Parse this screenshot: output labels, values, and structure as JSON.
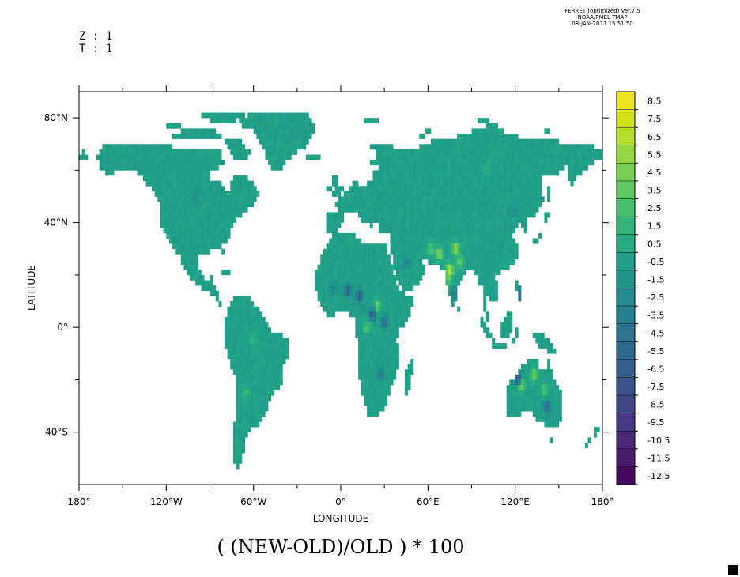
{
  "header": {
    "program_lines": [
      "FERRET (optimized) Ver.7.5",
      "NOAA/PMEL TMAP",
      "08-JAN-2021 15 51 50"
    ],
    "z_label": "Z : 1",
    "t_label": "T : 1"
  },
  "chart_data": {
    "type": "heatmap",
    "title": "( (NEW-OLD)/OLD ) * 100",
    "xlabel": "LONGITUDE",
    "ylabel": "LATITUDE",
    "xlim": [
      -180,
      180
    ],
    "ylim": [
      -60,
      90
    ],
    "x_ticks": [
      {
        "value": -180,
        "label": "180°"
      },
      {
        "value": -120,
        "label": "120°W"
      },
      {
        "value": -60,
        "label": "60°W"
      },
      {
        "value": 0,
        "label": "0°"
      },
      {
        "value": 60,
        "label": "60°E"
      },
      {
        "value": 120,
        "label": "120°E"
      },
      {
        "value": 180,
        "label": "180°"
      }
    ],
    "x_minor_ticks": [
      -150,
      -90,
      -30,
      30,
      90,
      150
    ],
    "y_ticks": [
      {
        "value": 80,
        "label": "80°N"
      },
      {
        "value": 40,
        "label": "40°N"
      },
      {
        "value": 0,
        "label": "0°"
      },
      {
        "value": -40,
        "label": "40°S"
      }
    ],
    "y_minor_ticks": [
      60,
      20,
      -20
    ],
    "colorbar": {
      "levels": [
        -12.5,
        -11.5,
        -10.5,
        -9.5,
        -8.5,
        -7.5,
        -6.5,
        -5.5,
        -4.5,
        -3.5,
        -2.5,
        -1.5,
        -0.5,
        0.5,
        1.5,
        2.5,
        3.5,
        4.5,
        5.5,
        6.5,
        7.5,
        8.5
      ],
      "labels": [
        "8.5",
        "7.5",
        "6.5",
        "5.5",
        "4.5",
        "3.5",
        "2.5",
        "1.5",
        "0.5",
        "-0.5",
        "-1.5",
        "-2.5",
        "-3.5",
        "-4.5",
        "-5.5",
        "-6.5",
        "-7.5",
        "-8.5",
        "-9.5",
        "-10.5",
        "-11.5",
        "-12.5"
      ],
      "colormap": "viridis",
      "min": -12.5,
      "max": 9.5
    },
    "field_note": "Land-only field; values mostly near 0 (teal), with positive (yellow) patches over northern India and NW Australia and negative (purple/blue) patches over central Africa, Philippines and Australia.",
    "base_value": 0,
    "anomalies": [
      {
        "lon": 75,
        "lat": 22,
        "value": 7.5
      },
      {
        "lon": 79,
        "lat": 30,
        "value": 6.5
      },
      {
        "lon": 68,
        "lat": 28,
        "value": 5.5
      },
      {
        "lon": 82,
        "lat": 25,
        "value": 4.5
      },
      {
        "lon": 74,
        "lat": 18,
        "value": 3.5
      },
      {
        "lon": 62,
        "lat": 30,
        "value": 3.5
      },
      {
        "lon": 78,
        "lat": 13,
        "value": -3.5
      },
      {
        "lon": 125,
        "lat": 12,
        "value": -9.5
      },
      {
        "lon": 122,
        "lat": -20,
        "value": -8.5
      },
      {
        "lon": 124,
        "lat": -22,
        "value": 6.5
      },
      {
        "lon": 133,
        "lat": -18,
        "value": 5.5
      },
      {
        "lon": 142,
        "lat": -30,
        "value": -5.5
      },
      {
        "lon": 140,
        "lat": -24,
        "value": 3.5
      },
      {
        "lon": 5,
        "lat": 14,
        "value": -5.5
      },
      {
        "lon": 13,
        "lat": 12,
        "value": -6.5
      },
      {
        "lon": 22,
        "lat": 5,
        "value": -6.5
      },
      {
        "lon": 30,
        "lat": 2,
        "value": -5.5
      },
      {
        "lon": 25,
        "lat": 8,
        "value": 4.5
      },
      {
        "lon": 18,
        "lat": 0,
        "value": 3.5
      },
      {
        "lon": 28,
        "lat": -18,
        "value": -3.5
      },
      {
        "lon": 45,
        "lat": 25,
        "value": -2.5
      },
      {
        "lon": -5,
        "lat": 15,
        "value": -2.5
      },
      {
        "lon": 120,
        "lat": 45,
        "value": -1.5
      },
      {
        "lon": 100,
        "lat": 60,
        "value": 1.5
      },
      {
        "lon": -100,
        "lat": 50,
        "value": -1.5
      },
      {
        "lon": -60,
        "lat": -5,
        "value": 1.5
      },
      {
        "lon": -65,
        "lat": -25,
        "value": 2.5
      }
    ]
  }
}
